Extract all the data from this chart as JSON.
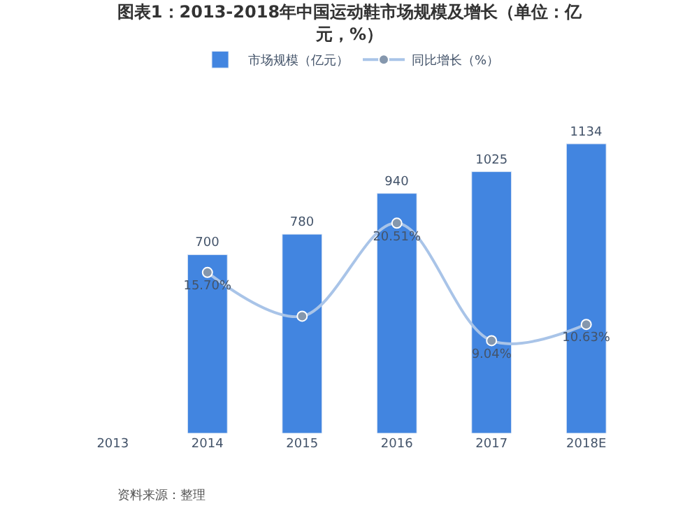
{
  "chart_data": {
    "type": "bar",
    "title": "图表1：2013-2018年中国运动鞋市场规模及增长（单位：亿元，%）",
    "categories": [
      "2013",
      "2014",
      "2015",
      "2016",
      "2017",
      "2018E"
    ],
    "series": [
      {
        "name": "市场规模（亿元）",
        "color": "#4285e0",
        "values": [
          null,
          700,
          780,
          940,
          1025,
          1134
        ],
        "value_labels": [
          null,
          "700",
          "780",
          "940",
          "1025",
          "1134"
        ]
      },
      {
        "name": "同比增长（%）",
        "type": "line",
        "axis": "y2",
        "color": "#a9c4e8",
        "marker": "circle",
        "values": [
          null,
          15.7,
          11.43,
          20.51,
          9.04,
          10.63
        ],
        "value_labels": [
          null,
          "15.70%",
          null,
          "20.51%",
          "9.04%",
          "10.63%"
        ]
      }
    ],
    "tick_labels": "x",
    "legend": "top",
    "annotations": [
      "资料来源：整理"
    ]
  }
}
